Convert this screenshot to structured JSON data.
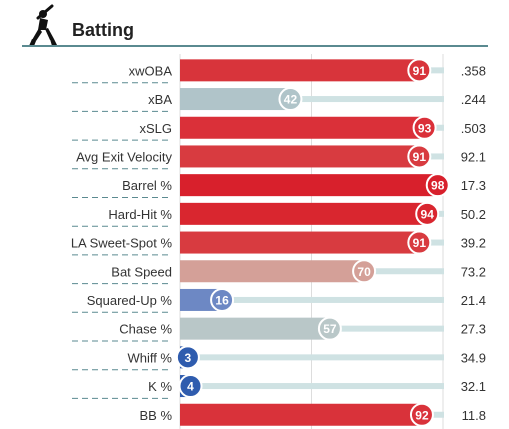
{
  "header": {
    "title": "Batting",
    "icon": "batter-icon"
  },
  "colors": {
    "track": "#cfe2e3",
    "gridline": "#dddddd",
    "separator": "#5a8a90"
  },
  "chart_data": {
    "type": "bar",
    "orientation": "horizontal",
    "title": "Batting",
    "xlim": [
      0,
      100
    ],
    "grid": true,
    "categories": [
      "xwOBA",
      "xBA",
      "xSLG",
      "Avg Exit Velocity",
      "Barrel %",
      "Hard-Hit %",
      "LA Sweet-Spot %",
      "Bat Speed",
      "Squared-Up %",
      "Chase %",
      "Whiff %",
      "K %",
      "BB %"
    ],
    "percentiles": [
      91,
      42,
      93,
      91,
      98,
      94,
      91,
      70,
      16,
      57,
      3,
      4,
      92
    ],
    "values": [
      ".358",
      ".244",
      ".503",
      "92.1",
      "17.3",
      "50.2",
      "39.2",
      "73.2",
      "21.4",
      "27.3",
      "34.9",
      "32.1",
      "11.8"
    ],
    "bar_colors": [
      "#d8343b",
      "#b0c4c9",
      "#da3039",
      "#d83b40",
      "#d8202c",
      "#d9262f",
      "#d83b40",
      "#d4a098",
      "#6d88c4",
      "#b9c7c8",
      "#2f5cae",
      "#2f5cae",
      "#d9323a"
    ]
  }
}
